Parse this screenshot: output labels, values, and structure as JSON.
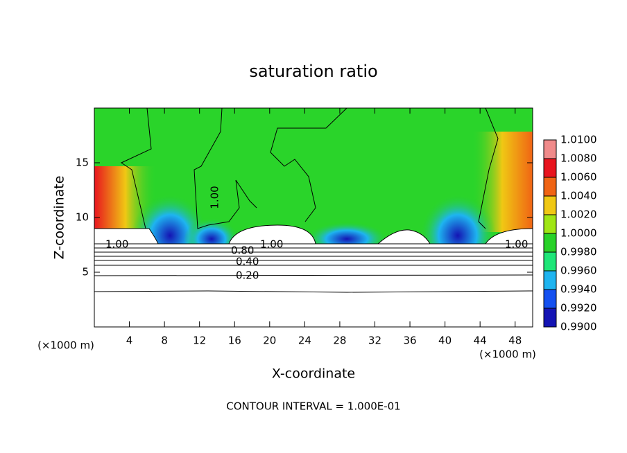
{
  "chart_data": {
    "type": "contour",
    "title": "saturation ratio",
    "x_label": "X-coordinate",
    "y_label": "Z-coordinate",
    "x_unit_label": "(×1000 m)",
    "y_unit_label": "(×1000 m)",
    "footer": "CONTOUR INTERVAL = 1.000E-01",
    "xlim": [
      0,
      50
    ],
    "ylim": [
      0,
      20
    ],
    "xticks": [
      4,
      8,
      12,
      16,
      20,
      24,
      28,
      32,
      36,
      40,
      44,
      48
    ],
    "yticks": [
      5,
      10,
      15
    ],
    "contour_labels": [
      "1.00",
      "1.00",
      "1.00",
      "1.00",
      "0.80",
      "0.40",
      "0.20"
    ],
    "colorbar": {
      "ticks": [
        {
          "value": 1.01,
          "label": "1.0100"
        },
        {
          "value": 1.008,
          "label": "1.0080"
        },
        {
          "value": 1.006,
          "label": "1.0060"
        },
        {
          "value": 1.004,
          "label": "1.0040"
        },
        {
          "value": 1.002,
          "label": "1.0020"
        },
        {
          "value": 1.0,
          "label": "1.0000"
        },
        {
          "value": 0.998,
          "label": "0.9980"
        },
        {
          "value": 0.996,
          "label": "0.9960"
        },
        {
          "value": 0.994,
          "label": "0.9940"
        },
        {
          "value": 0.992,
          "label": "0.9920"
        },
        {
          "value": 0.99,
          "label": "0.9900"
        }
      ],
      "colors": [
        "#f08a8a",
        "#e8141e",
        "#f06414",
        "#f0c814",
        "#a0e614",
        "#28d228",
        "#1ee678",
        "#1eb4f0",
        "#1450f0",
        "#1414b4",
        "#6414a0"
      ]
    }
  }
}
